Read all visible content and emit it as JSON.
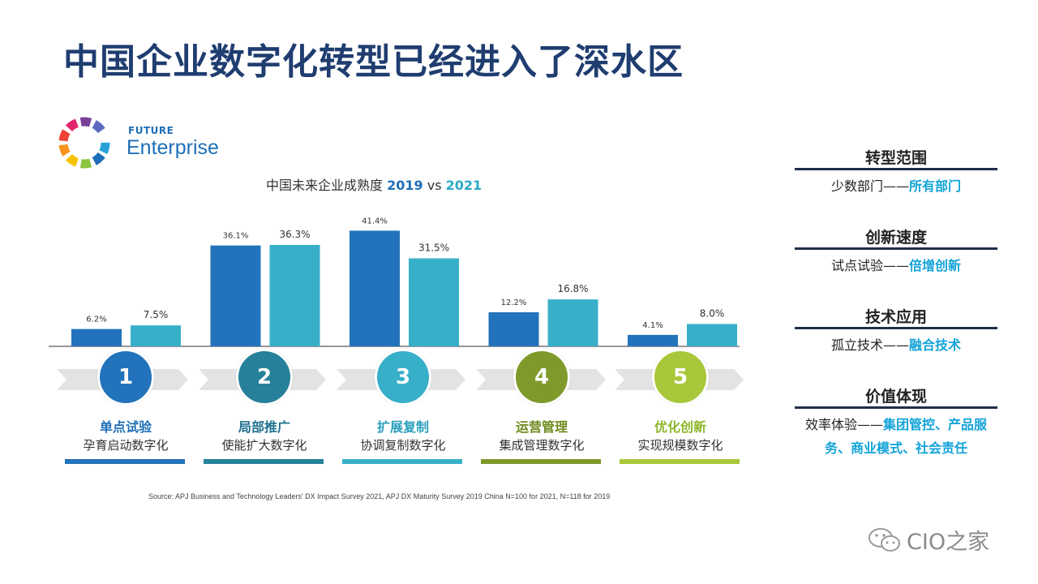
{
  "title": "中国企业数字化转型已经进入了深水区",
  "logo": {
    "small": "FUTURE",
    "big": "Enterprise"
  },
  "chart_title": {
    "prefix": "中国未来企业成熟度",
    "year1": "2019",
    "vs": "vs",
    "year2": "2021"
  },
  "colors": {
    "series1": "#2273bb",
    "series2": "#38afc9",
    "title": "#1f3d70",
    "highlight": "#12a3d8"
  },
  "chart_data": {
    "type": "bar",
    "categories": [
      "单点试验",
      "局部推广",
      "扩展复制",
      "运营管理",
      "优化创新"
    ],
    "series": [
      {
        "name": "2019",
        "values": [
          6.2,
          36.1,
          41.4,
          12.2,
          4.1
        ],
        "labels": [
          "6.2%",
          "36.1%",
          "41.4%",
          "12.2%",
          "4.1%"
        ]
      },
      {
        "name": "2021",
        "values": [
          7.5,
          36.3,
          31.5,
          16.8,
          8.0
        ],
        "labels": [
          "7.5%",
          "36.3%",
          "31.5%",
          "16.8%",
          "8.0%"
        ]
      }
    ],
    "title": "中国未来企业成熟度 2019 vs 2021",
    "ylim": [
      0,
      45
    ],
    "grid": false
  },
  "steps": [
    {
      "num": "1",
      "name": "单点试验",
      "desc": "孕育启动数字化",
      "color": "#2273bb"
    },
    {
      "num": "2",
      "name": "局部推广",
      "desc": "使能扩大数字化",
      "color": "#26809a"
    },
    {
      "num": "3",
      "name": "扩展复制",
      "desc": "协调复制数字化",
      "color": "#38afc9"
    },
    {
      "num": "4",
      "name": "运营管理",
      "desc": "集成管理数字化",
      "color": "#7f9a2a"
    },
    {
      "num": "5",
      "name": "优化创新",
      "desc": "实现规模数字化",
      "color": "#a8c73a"
    }
  ],
  "source": "Source: APJ Business and Technology Leaders' DX Impact Survey 2021, APJ DX Maturity Survey 2019  China N=100 for 2021,  N=118 for 2019",
  "panels": [
    {
      "head": "转型范围",
      "plain": "少数部门——",
      "highlight": "所有部门"
    },
    {
      "head": "创新速度",
      "plain": "试点试验——",
      "highlight": "倍增创新"
    },
    {
      "head": "技术应用",
      "plain": "孤立技术——",
      "highlight": "融合技术"
    },
    {
      "head": "价值体现",
      "plain": "效率体验——",
      "highlight": "集团管控、产品服务、商业模式、社会责任"
    }
  ],
  "watermark": "CIO之家"
}
